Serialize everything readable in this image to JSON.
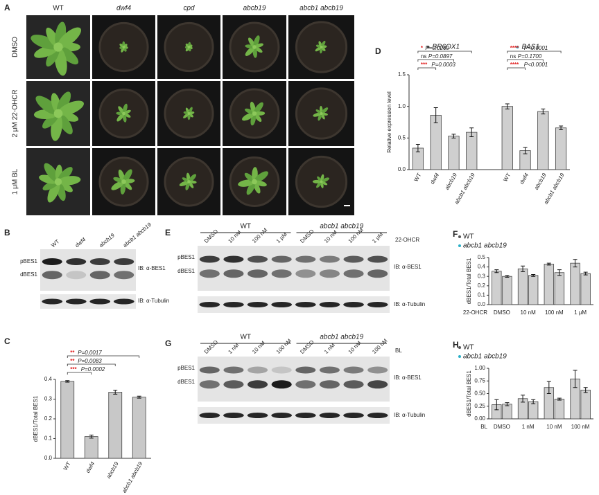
{
  "figure": {
    "panel_labels": [
      "A",
      "B",
      "C",
      "D",
      "E",
      "F",
      "G",
      "H"
    ],
    "A": {
      "columns": [
        "WT",
        "dwf4",
        "cpd",
        "abcb19",
        "abcb1 abcb19"
      ],
      "rows": [
        "DMSO",
        "2 μM 22-OHCR",
        "1 μM BL"
      ]
    },
    "B": {
      "lanes": [
        "WT",
        "dwf4",
        "abcb19",
        "abcb1 abcb19"
      ],
      "bands": [
        "pBES1",
        "dBES1"
      ],
      "antibodies": [
        "IB: α-BES1",
        "IB: α-Tubulin"
      ]
    },
    "E": {
      "groups": [
        "WT",
        "abcb1 abcb19"
      ],
      "lanes": [
        "DMSO",
        "10 nM",
        "100 nM",
        "1 μM"
      ],
      "treatment": "22-OHCR",
      "bands": [
        "pBES1",
        "dBES1"
      ],
      "antibodies": [
        "IB: α-BES1",
        "IB: α-Tubulin"
      ]
    },
    "G": {
      "groups": [
        "WT",
        "abcb1 abcb19"
      ],
      "lanes": [
        "DMSO",
        "1 nM",
        "10 nM",
        "100 nM"
      ],
      "treatment": "BL",
      "bands": [
        "pBES1",
        "dBES1"
      ],
      "antibodies": [
        "IB: α-BES1",
        "IB: α-Tubulin"
      ]
    }
  },
  "chart_data": [
    {
      "type": "bar",
      "ylabel": "dBES1/Total BES1",
      "color": "#c8c8c8",
      "categories": [
        "WT",
        "dwf4",
        "abcb19",
        "abcb1 abcb19"
      ],
      "values": [
        0.39,
        0.11,
        0.335,
        0.31
      ],
      "errors": [
        0.004,
        0.008,
        0.01,
        0.005
      ],
      "ylim": [
        0,
        0.4
      ],
      "yticks": [
        {
          "value": 0,
          "label": "0.0"
        },
        0.1,
        0.2,
        0.3,
        0.4
      ],
      "annotations": [
        {
          "stars": "***",
          "text": "P=0.0002"
        },
        {
          "stars": "**",
          "text": "P=0.0083"
        },
        {
          "stars": "**",
          "text": "P=0.0017"
        }
      ]
    },
    {
      "type": "bar",
      "ylabel": "Relative expression level",
      "grouped": false,
      "categories": [
        "WT",
        "dwf4",
        "abcb19",
        "abcb1 abcb19"
      ],
      "series": [
        {
          "name": "BR6OX1",
          "color": "#555555",
          "values": [
            0.34,
            0.86,
            0.53,
            0.59
          ],
          "errors": [
            0.06,
            0.12,
            0.03,
            0.07
          ],
          "annotations": [
            {
              "stars": "***",
              "text": "P=0.0003"
            },
            {
              "stars": "ns",
              "text": "P=0.0897"
            },
            {
              "stars": "*",
              "text": "P=0.0260"
            }
          ]
        },
        {
          "name": "BAS1",
          "color": "#2ab0c8",
          "values": [
            1.0,
            0.3,
            0.92,
            0.66
          ],
          "errors": [
            0.04,
            0.05,
            0.04,
            0.03
          ],
          "annotations": [
            {
              "stars": "****",
              "text": "P<0.0001"
            },
            {
              "stars": "ns",
              "text": "P=0.1700"
            },
            {
              "stars": "****",
              "text": "P<0.0001"
            }
          ]
        }
      ],
      "ylim": [
        0,
        1.5
      ],
      "yticks": [
        {
          "value": 0,
          "label": "0.0"
        },
        0.5,
        {
          "value": 1,
          "label": "1.0"
        },
        1.5
      ]
    },
    {
      "type": "bar",
      "ylabel": "dBES1/Total BES1",
      "xlabel": "22-OHCR",
      "grouped": true,
      "categories": [
        "DMSO",
        "10 nM",
        "100 nM",
        "1 μM"
      ],
      "series": [
        {
          "name": "WT",
          "color": "#555555",
          "values": [
            0.355,
            0.38,
            0.43,
            0.44
          ],
          "errors": [
            0.015,
            0.03,
            0.01,
            0.04
          ]
        },
        {
          "name": "abcb1 abcb19",
          "color": "#2ab0c8",
          "values": [
            0.3,
            0.31,
            0.34,
            0.33
          ],
          "errors": [
            0.01,
            0.01,
            0.03,
            0.015
          ]
        }
      ],
      "ylim": [
        0,
        0.5
      ],
      "yticks": [
        {
          "value": 0,
          "label": "0.0"
        },
        0.1,
        0.2,
        0.3,
        0.4,
        0.5
      ]
    },
    {
      "type": "bar",
      "ylabel": "dBES1/Total BES1",
      "xlabel": "BL",
      "grouped": true,
      "categories": [
        "DMSO",
        "1 nM",
        "10 nM",
        "100 nM"
      ],
      "series": [
        {
          "name": "WT",
          "color": "#555555",
          "values": [
            0.28,
            0.4,
            0.62,
            0.79
          ],
          "errors": [
            0.1,
            0.07,
            0.12,
            0.17
          ]
        },
        {
          "name": "abcb1 abcb19",
          "color": "#2ab0c8",
          "values": [
            0.29,
            0.34,
            0.39,
            0.57
          ],
          "errors": [
            0.03,
            0.04,
            0.02,
            0.05
          ]
        }
      ],
      "ylim": [
        0,
        1
      ],
      "yticks": [
        {
          "value": 0,
          "label": "0.00"
        },
        {
          "value": 0.25,
          "label": "0.25"
        },
        {
          "value": 0.5,
          "label": "0.50"
        },
        {
          "value": 0.75,
          "label": "0.75"
        },
        {
          "value": 1,
          "label": "1.00"
        }
      ]
    }
  ]
}
